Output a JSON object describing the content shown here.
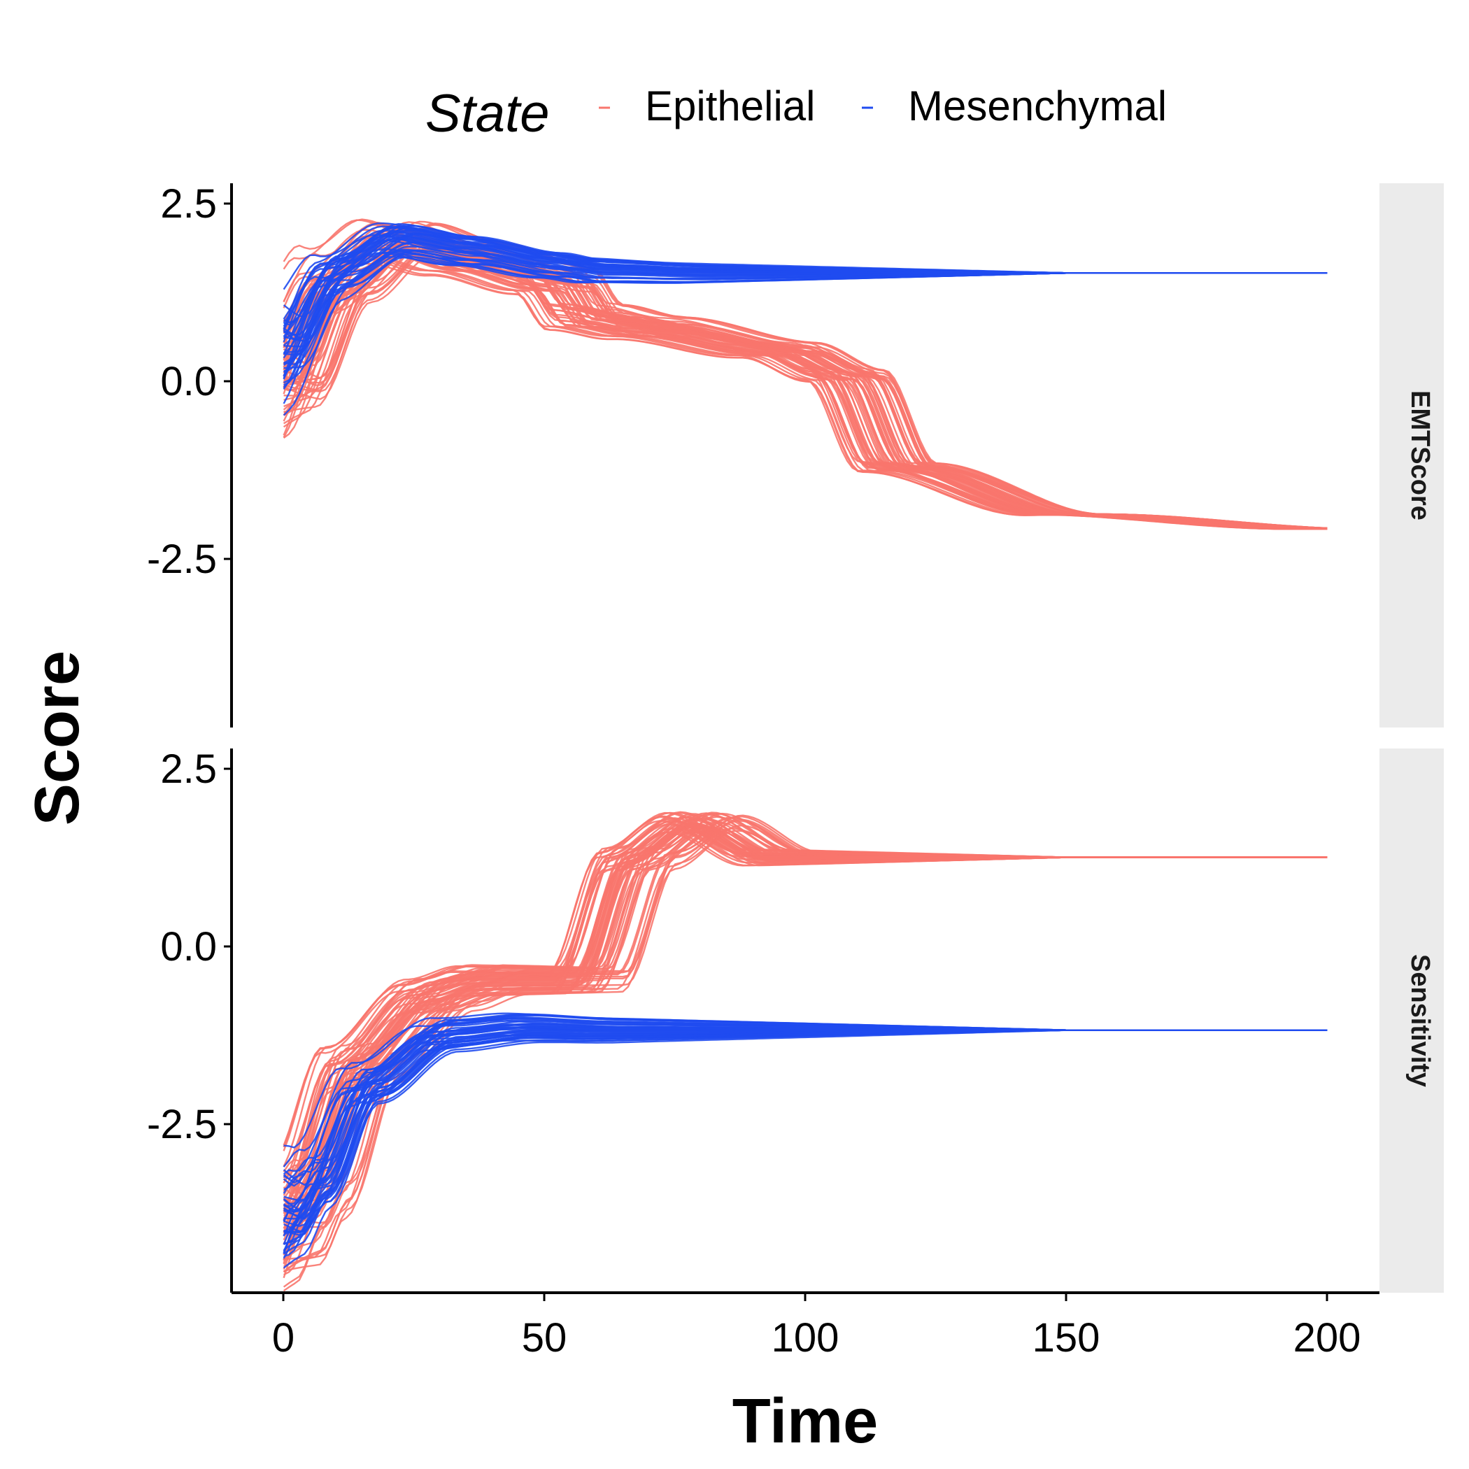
{
  "chart_data": {
    "type": "line",
    "xlabel": "Time",
    "ylabel": "Score",
    "xlim": [
      -10,
      210
    ],
    "ylim": [
      -4.6,
      2.8
    ],
    "xticks": [
      "0",
      "50",
      "100",
      "150",
      "200"
    ],
    "yticks": [
      "2.5",
      "0.0",
      "-2.5"
    ],
    "legend": {
      "title": "State",
      "position": "top",
      "items": [
        {
          "label": "Epithelial",
          "color": "#F8766D"
        },
        {
          "label": "Mesenchymal",
          "color": "#1F4BF0"
        }
      ]
    },
    "colors": {
      "epithelial": "#F8766D",
      "mesenchymal": "#1F4BF0",
      "strip": "#EBEBEB"
    },
    "facets": [
      {
        "strip": "EMTScore",
        "series": [
          {
            "name": "Epithelial",
            "color": "#F8766D",
            "x": [
              0,
              10,
              22,
              35,
              52,
              58,
              70,
              95,
              108,
              118,
              150,
              200
            ],
            "y": [
              0.0,
              1.4,
              2.05,
              1.8,
              1.5,
              1.0,
              0.85,
              0.55,
              0.2,
              -1.05,
              -1.7,
              -1.9
            ],
            "note": "about 60 overlapping trajectories"
          },
          {
            "name": "Mesenchymal",
            "color": "#1F4BF0",
            "x": [
              0,
              10,
              22,
              35,
              52,
              60,
              80,
              200
            ],
            "y": [
              0.5,
              1.6,
              2.05,
              1.9,
              1.7,
              1.62,
              1.58,
              1.58
            ],
            "note": "about 40 overlapping trajectories"
          }
        ]
      },
      {
        "strip": "Sensitivity",
        "series": [
          {
            "name": "Epithelial",
            "color": "#F8766D",
            "x": [
              0,
              5,
              15,
              30,
              40,
              58,
              68,
              80,
              95,
              200
            ],
            "y": [
              -3.9,
              -3.3,
              -1.5,
              -0.55,
              -0.35,
              -0.35,
              1.3,
              1.8,
              1.32,
              1.32
            ],
            "note": "about 60 overlapping trajectories"
          },
          {
            "name": "Mesenchymal",
            "color": "#1F4BF0",
            "x": [
              0,
              5,
              15,
              30,
              45,
              60,
              200
            ],
            "y": [
              -3.7,
              -3.2,
              -1.8,
              -1.1,
              -1.0,
              -1.03,
              -1.03
            ],
            "note": "about 40 overlapping trajectories"
          }
        ]
      }
    ]
  }
}
